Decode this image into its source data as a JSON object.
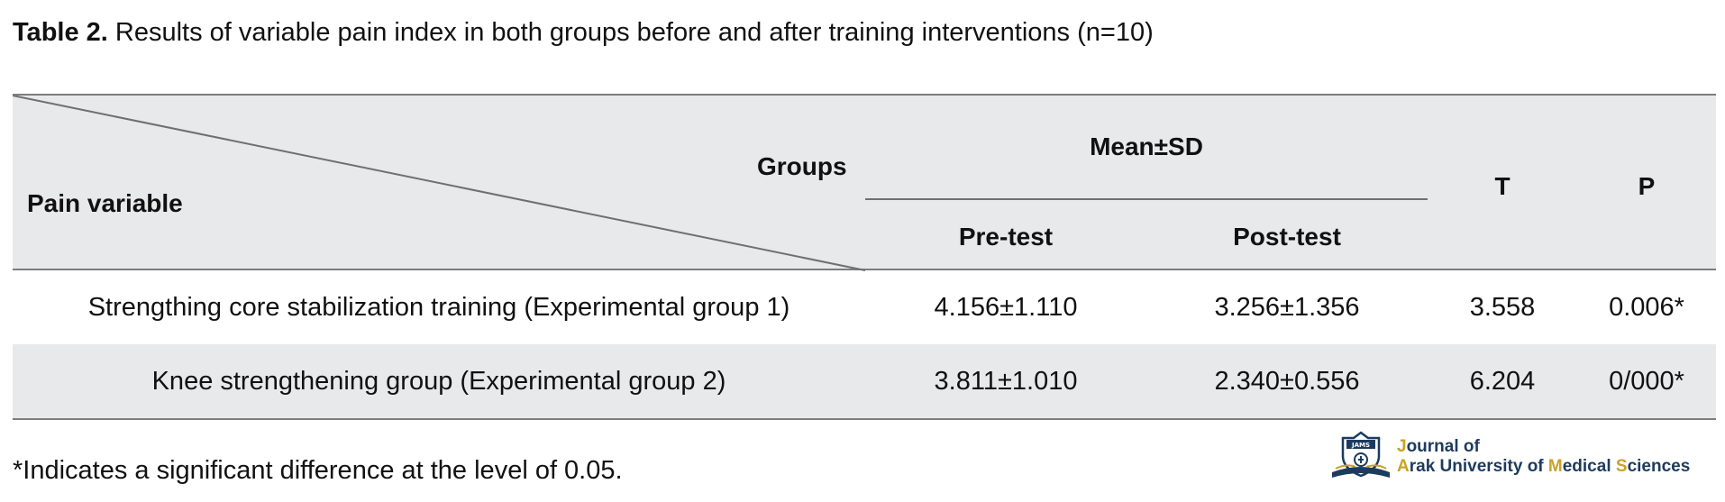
{
  "caption": {
    "label": "Table 2.",
    "text": " Results of variable pain index in both groups before and after training interventions (n=10)"
  },
  "table": {
    "corner_top": "Groups",
    "corner_bottom": "Pain variable",
    "mean_sd": "Mean±SD",
    "pre": "Pre-test",
    "post": "Post-test",
    "t": "T",
    "p": "P",
    "rows": [
      {
        "label": "Strengthing core stabilization training (Experimental group 1)",
        "pre": "4.156±1.110",
        "post": "3.256±1.356",
        "t": "3.558",
        "p": "0.006*"
      },
      {
        "label": "Knee strengthening group (Experimental group 2)",
        "pre": "3.811±1.010",
        "post": "2.340±0.556",
        "t": "6.204",
        "p": "0/000*"
      }
    ]
  },
  "footnote": "*Indicates a significant difference at the level of 0.05.",
  "logo": {
    "line1_a": "J",
    "line1_b": "ournal of",
    "line2_a": "A",
    "line2_b": "rak University of ",
    "line2_c": "M",
    "line2_d": "edical ",
    "line2_e": "S",
    "line2_f": "ciences",
    "emblem_text": "JAMS"
  },
  "colors": {
    "header_bg": "#e8e9eb",
    "rule": "#7d7d7d",
    "logo_navy": "#1d3b5e",
    "logo_gold": "#c9a227"
  }
}
